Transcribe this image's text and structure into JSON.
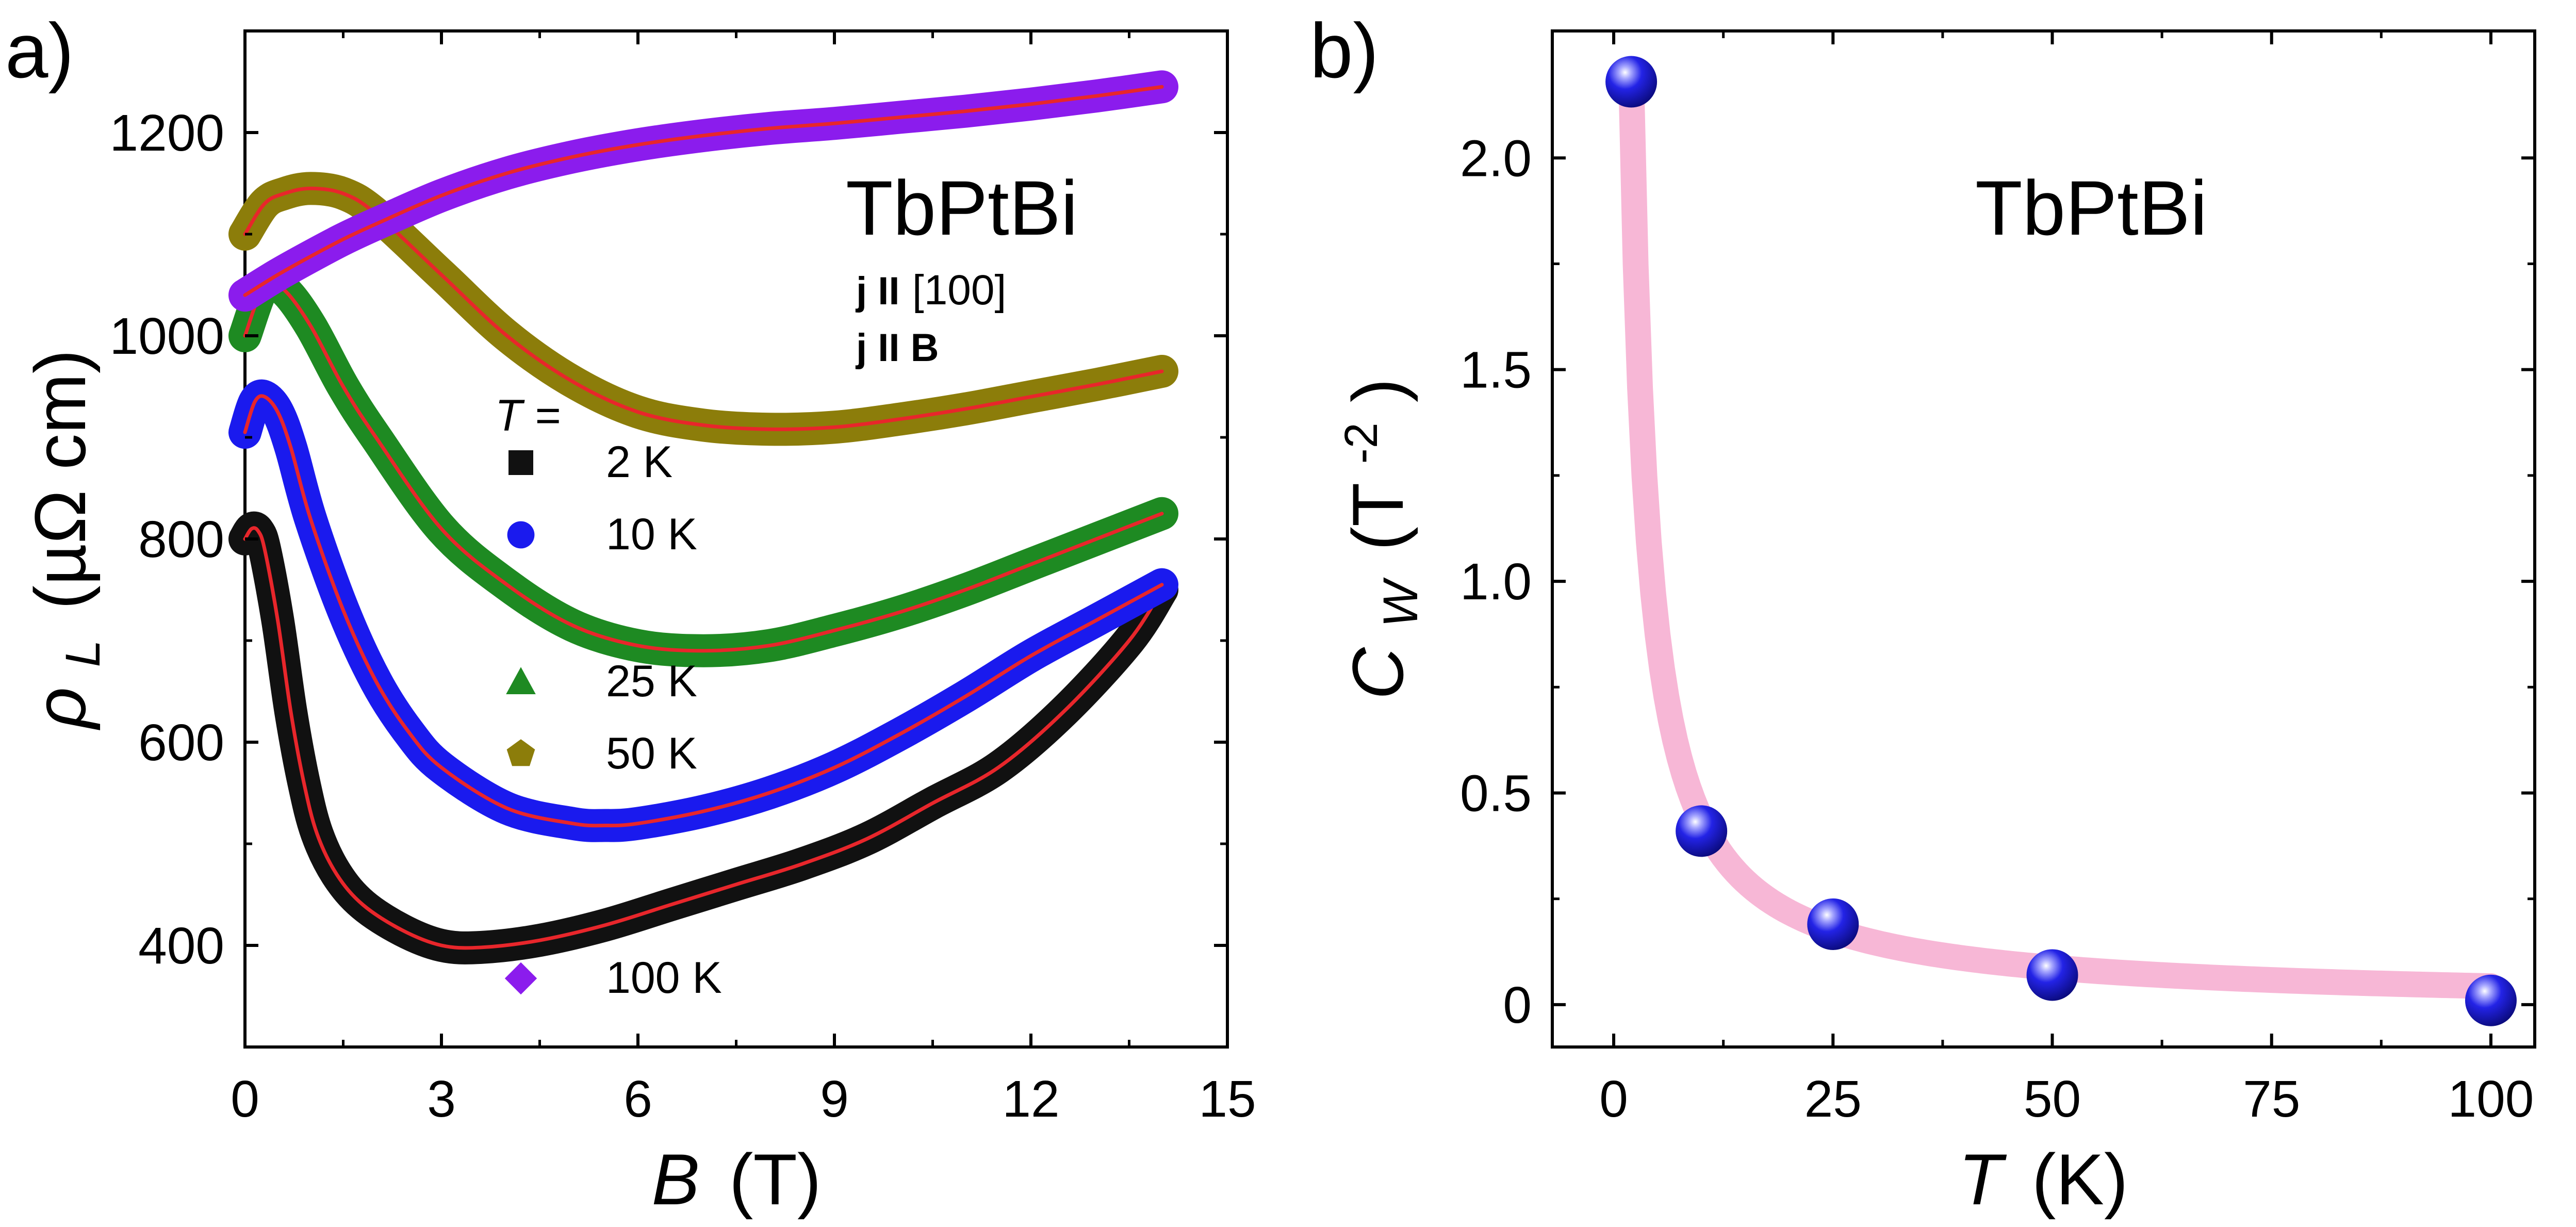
{
  "chart_data": [
    {
      "panel_label": "a)",
      "type": "line",
      "sample": "TbPtBi",
      "annotations": [
        "j II",
        "[100]",
        "j II B"
      ],
      "xlabel_symbol": "B",
      "xlabel_unit": "(T)",
      "ylabel_symbol": "ρ",
      "ylabel_subscript": "L",
      "ylabel_unit": "(µΩ cm)",
      "xlim": [
        0,
        15
      ],
      "ylim": [
        300,
        1300
      ],
      "xticks": [
        0,
        3,
        6,
        9,
        12,
        15
      ],
      "yticks": [
        400,
        600,
        800,
        1000,
        1200
      ],
      "legend_title": "T =",
      "fit_color": "#e8262b",
      "series": [
        {
          "name": "2 K",
          "marker": "square",
          "color": "#111111",
          "x": [
            0,
            0.1,
            0.2,
            0.3,
            0.5,
            0.7,
            0.9,
            1.1,
            1.4,
            1.8,
            2.4,
            3.0,
            3.6,
            4.5,
            5.5,
            6.5,
            7.5,
            8.5,
            9.5,
            10.5,
            11.5,
            12.5,
            13.5,
            14.0
          ],
          "y": [
            800,
            810,
            808,
            790,
            720,
            630,
            560,
            510,
            470,
            440,
            415,
            400,
            398,
            405,
            420,
            440,
            460,
            480,
            505,
            540,
            575,
            630,
            700,
            750
          ]
        },
        {
          "name": "10 K",
          "marker": "circle",
          "color": "#1a1aee",
          "x": [
            0,
            0.15,
            0.3,
            0.5,
            0.7,
            1.0,
            1.5,
            2.0,
            2.5,
            3.0,
            4.0,
            5.0,
            5.5,
            6.0,
            7.0,
            8.0,
            9.0,
            10.0,
            11.0,
            12.0,
            13.0,
            14.0
          ],
          "y": [
            905,
            935,
            940,
            925,
            890,
            820,
            730,
            660,
            610,
            575,
            535,
            520,
            518,
            520,
            532,
            550,
            575,
            608,
            645,
            685,
            720,
            755
          ]
        },
        {
          "name": "25 K",
          "marker": "triangle",
          "color": "#1e8a22",
          "x": [
            0,
            0.3,
            0.6,
            1.0,
            1.5,
            2.0,
            3.0,
            4.0,
            5.0,
            6.0,
            7.0,
            8.0,
            9.0,
            10.0,
            11.0,
            12.0,
            13.0,
            14.0
          ],
          "y": [
            1000,
            1050,
            1045,
            1010,
            950,
            900,
            810,
            755,
            715,
            695,
            690,
            695,
            710,
            728,
            750,
            775,
            800,
            825
          ]
        },
        {
          "name": "50 K",
          "marker": "pentagon",
          "color": "#8c7d0a",
          "x": [
            0,
            0.3,
            0.6,
            1.0,
            1.5,
            2.0,
            3.0,
            4.0,
            5.0,
            6.0,
            7.0,
            8.0,
            9.0,
            10.0,
            11.0,
            12.0,
            13.0,
            14.0
          ],
          "y": [
            1100,
            1130,
            1140,
            1145,
            1140,
            1120,
            1060,
            1000,
            955,
            925,
            912,
            908,
            910,
            918,
            928,
            940,
            952,
            965
          ]
        },
        {
          "name": "100 K",
          "marker": "diamond",
          "color": "#8b1ced",
          "x": [
            0,
            0.5,
            1.0,
            1.5,
            2.0,
            3.0,
            4.0,
            5.0,
            6.0,
            7.0,
            8.0,
            9.0,
            10.0,
            11.0,
            12.0,
            13.0,
            14.0
          ],
          "y": [
            1040,
            1060,
            1078,
            1095,
            1110,
            1138,
            1160,
            1176,
            1188,
            1197,
            1204,
            1209,
            1215,
            1221,
            1228,
            1236,
            1245
          ]
        }
      ]
    },
    {
      "panel_label": "b)",
      "type": "scatter",
      "sample": "TbPtBi",
      "xlabel_symbol": "T",
      "xlabel_unit": "(K)",
      "ylabel_symbol": "C",
      "ylabel_subscript": "W",
      "ylabel_unit_open": "(T",
      "ylabel_unit_sup": "-2",
      "ylabel_unit_close": ")",
      "xlim": [
        -7,
        105
      ],
      "ylim": [
        -0.1,
        2.3
      ],
      "xticks": [
        0,
        25,
        50,
        75,
        100
      ],
      "yticks": [
        0,
        0.5,
        1.0,
        1.5,
        2.0
      ],
      "ytick_labels": [
        "0",
        "0.5",
        "1.0",
        "1.5",
        "2.0"
      ],
      "marker_color": "#1414e0",
      "fit_color": "#f7b7d6",
      "points": {
        "x": [
          2,
          10,
          25,
          50,
          100
        ],
        "y": [
          2.18,
          0.41,
          0.19,
          0.07,
          0.01
        ]
      },
      "fit": {
        "form": "a/(T - T0)",
        "a": 4.37,
        "T0": 0
      }
    }
  ]
}
